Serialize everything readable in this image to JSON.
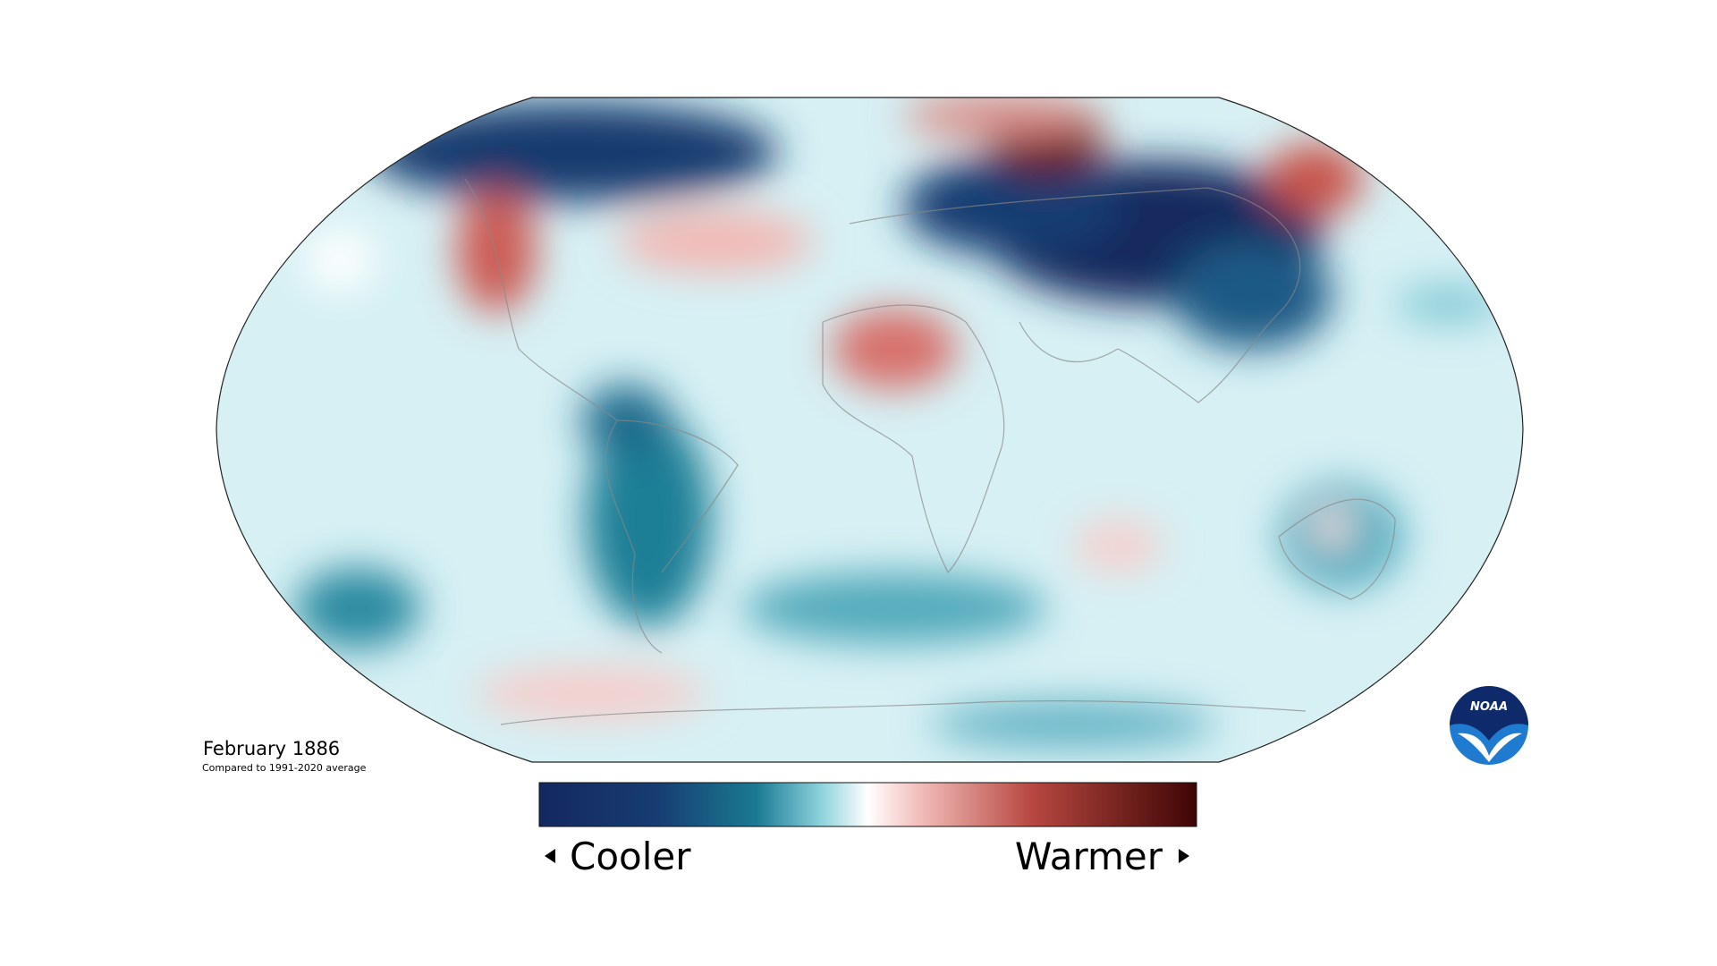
{
  "map": {
    "title": "February 1886",
    "subtitle": "Compared to 1991-2020 average"
  },
  "legend": {
    "low_label": "Cooler",
    "high_label": "Warmer"
  },
  "logo": {
    "text": "NOAA"
  }
}
